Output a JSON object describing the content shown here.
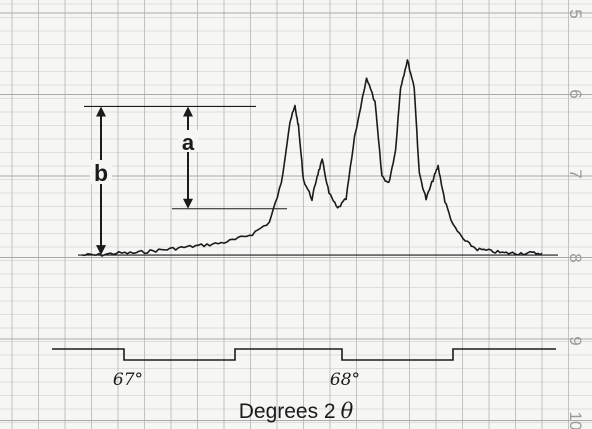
{
  "chart_data": {
    "type": "line",
    "title": "",
    "xlabel_text": "Degrees 2",
    "xlabel_symbol": "θ",
    "xlim": [
      66.25,
      68.95
    ],
    "ylim": [
      0,
      100
    ],
    "grid": true,
    "series": [
      {
        "x": [
          66.25,
          66.35,
          66.45,
          66.55,
          66.65,
          66.75,
          66.85,
          66.95,
          67.05,
          67.15,
          67.25,
          67.35,
          67.42,
          67.47,
          67.5,
          67.52,
          67.55,
          67.6,
          67.63,
          67.66,
          67.7,
          67.75,
          67.8,
          67.85,
          67.92,
          67.97,
          68.01,
          68.05,
          68.09,
          68.12,
          68.16,
          68.2,
          68.23,
          68.27,
          68.31,
          68.34,
          68.38,
          68.43,
          68.5,
          68.57,
          68.65,
          68.73,
          68.8,
          68.88,
          68.95
        ],
        "y": [
          1,
          1,
          2,
          2,
          3,
          4,
          5,
          6,
          7,
          9,
          12,
          18,
          38,
          70,
          78,
          68,
          40,
          30,
          42,
          50,
          33,
          25,
          30,
          62,
          93,
          80,
          42,
          38,
          55,
          88,
          102,
          88,
          43,
          30,
          40,
          47,
          29,
          16,
          8,
          4,
          3,
          2,
          2,
          2,
          2
        ]
      }
    ],
    "annotations": {
      "a": {
        "label": "a",
        "from": 25,
        "to": 78
      },
      "b": {
        "label": "b",
        "from": 1,
        "to": 78
      }
    },
    "x_markers": [
      {
        "label": "67°",
        "value": 67.0
      },
      {
        "label": "68°",
        "value": 68.0
      }
    ],
    "right_scale": [
      {
        "label": "5",
        "y": 142
      },
      {
        "label": "6",
        "y": 117
      },
      {
        "label": "7",
        "y": 92
      },
      {
        "label": "8",
        "y": 1
      },
      {
        "label": "9",
        "y": -38
      },
      {
        "label": "10",
        "y": -65
      }
    ],
    "colors": {
      "trace": "#1b1b1b",
      "grid": "#bdbdbd",
      "paper": "#f6f6f4",
      "scale": "#9a9a9a"
    }
  }
}
